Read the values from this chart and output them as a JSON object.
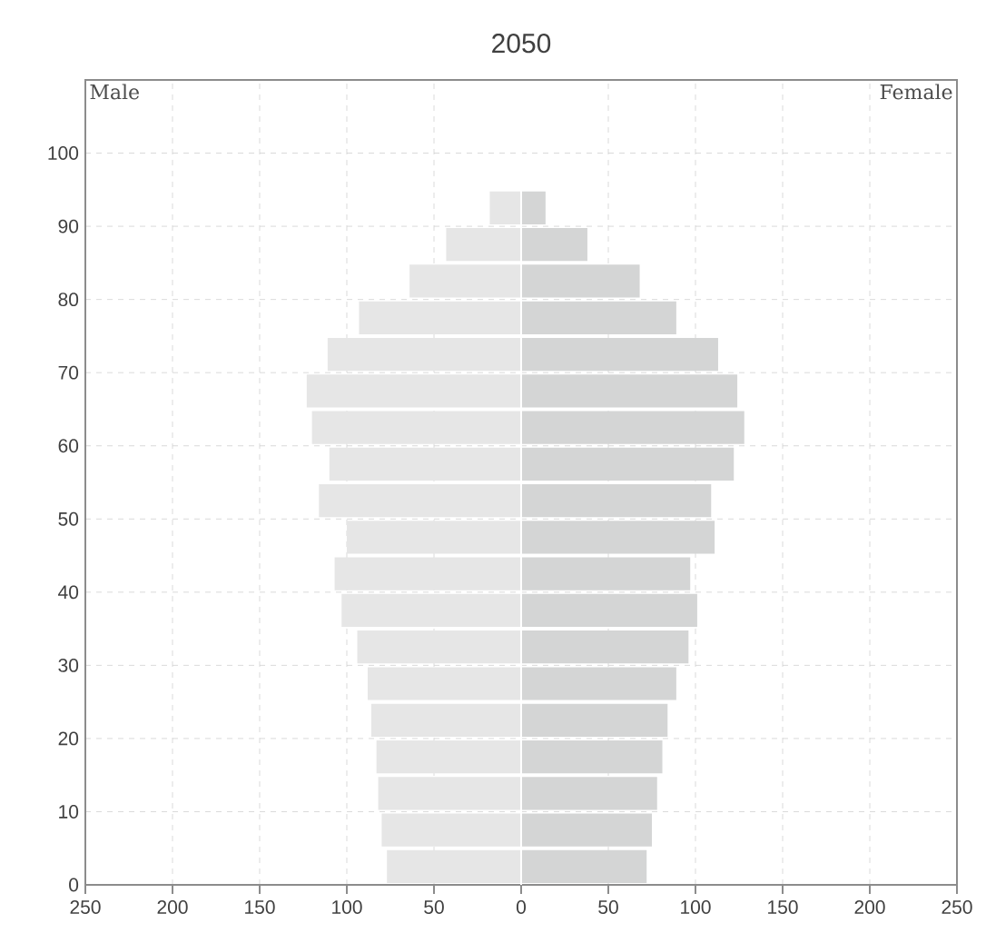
{
  "chart_data": {
    "type": "bar",
    "title": "2050",
    "orientation": "horizontal",
    "stacked": true,
    "x": [
      2.5,
      7.5,
      12.5,
      17.5,
      22.5,
      27.5,
      32.5,
      37.5,
      42.5,
      47.5,
      52.5,
      57.5,
      62.5,
      67.5,
      72.5,
      77.5,
      82.5,
      87.5,
      92.5
    ],
    "series": [
      {
        "color": "#e6e6e6",
        "values": [
          -77,
          -80,
          -82,
          -83,
          -86,
          -88,
          -94,
          -103,
          -107,
          -100,
          -116,
          -110,
          -120,
          -123,
          -111,
          -93,
          -64,
          -43,
          -18
        ]
      },
      {
        "color": "#d4d5d5",
        "values": [
          72,
          75,
          78,
          81,
          84,
          89,
          96,
          101,
          97,
          111,
          109,
          122,
          128,
          124,
          113,
          89,
          68,
          38,
          14
        ]
      }
    ],
    "xlim": [
      -250,
      250
    ],
    "xticks": [
      {
        "value": -250,
        "label": "250"
      },
      {
        "value": -200,
        "label": "200"
      },
      {
        "value": -150,
        "label": "150"
      },
      {
        "value": -100,
        "label": "100"
      },
      {
        "value": -50,
        "label": "50"
      },
      0,
      50,
      100,
      150,
      200,
      250
    ],
    "ylim": [
      0,
      110
    ],
    "yticks": [
      0,
      10,
      20,
      30,
      40,
      50,
      60,
      70,
      80,
      90,
      100
    ],
    "grid": true,
    "annotations": [
      "Male",
      "Female"
    ]
  }
}
